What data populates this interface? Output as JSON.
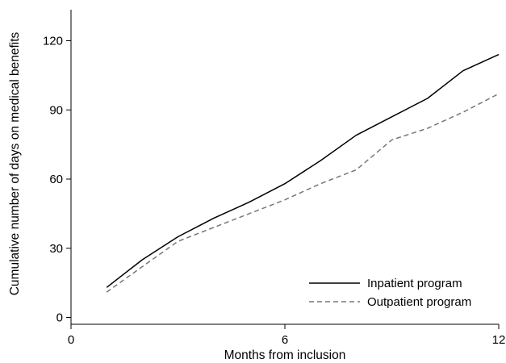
{
  "chart_data": {
    "type": "line",
    "title": "",
    "xlabel": "Months from inclusion",
    "ylabel": "Cumulative number of days on medical benefits",
    "xlim": [
      0,
      12
    ],
    "ylim": [
      0,
      130
    ],
    "xticks": [
      0,
      6,
      12
    ],
    "yticks": [
      0,
      30,
      60,
      90,
      120
    ],
    "grid": false,
    "legend_position": "bottom-right",
    "series": [
      {
        "name": "Inpatient program",
        "color": "#000000",
        "dash": "solid",
        "x": [
          1,
          2,
          3,
          4,
          5,
          6,
          7,
          8,
          9,
          10,
          11,
          12
        ],
        "y": [
          13,
          25,
          35,
          43,
          50,
          58,
          68,
          79,
          87,
          95,
          107,
          114
        ]
      },
      {
        "name": "Outpatient program",
        "color": "#777777",
        "dash": "dashed",
        "x": [
          1,
          2,
          3,
          4,
          5,
          6,
          7,
          8,
          9,
          10,
          11,
          12
        ],
        "y": [
          11,
          22,
          33,
          39,
          45,
          51,
          58,
          64,
          77,
          82,
          89,
          97
        ]
      }
    ]
  }
}
